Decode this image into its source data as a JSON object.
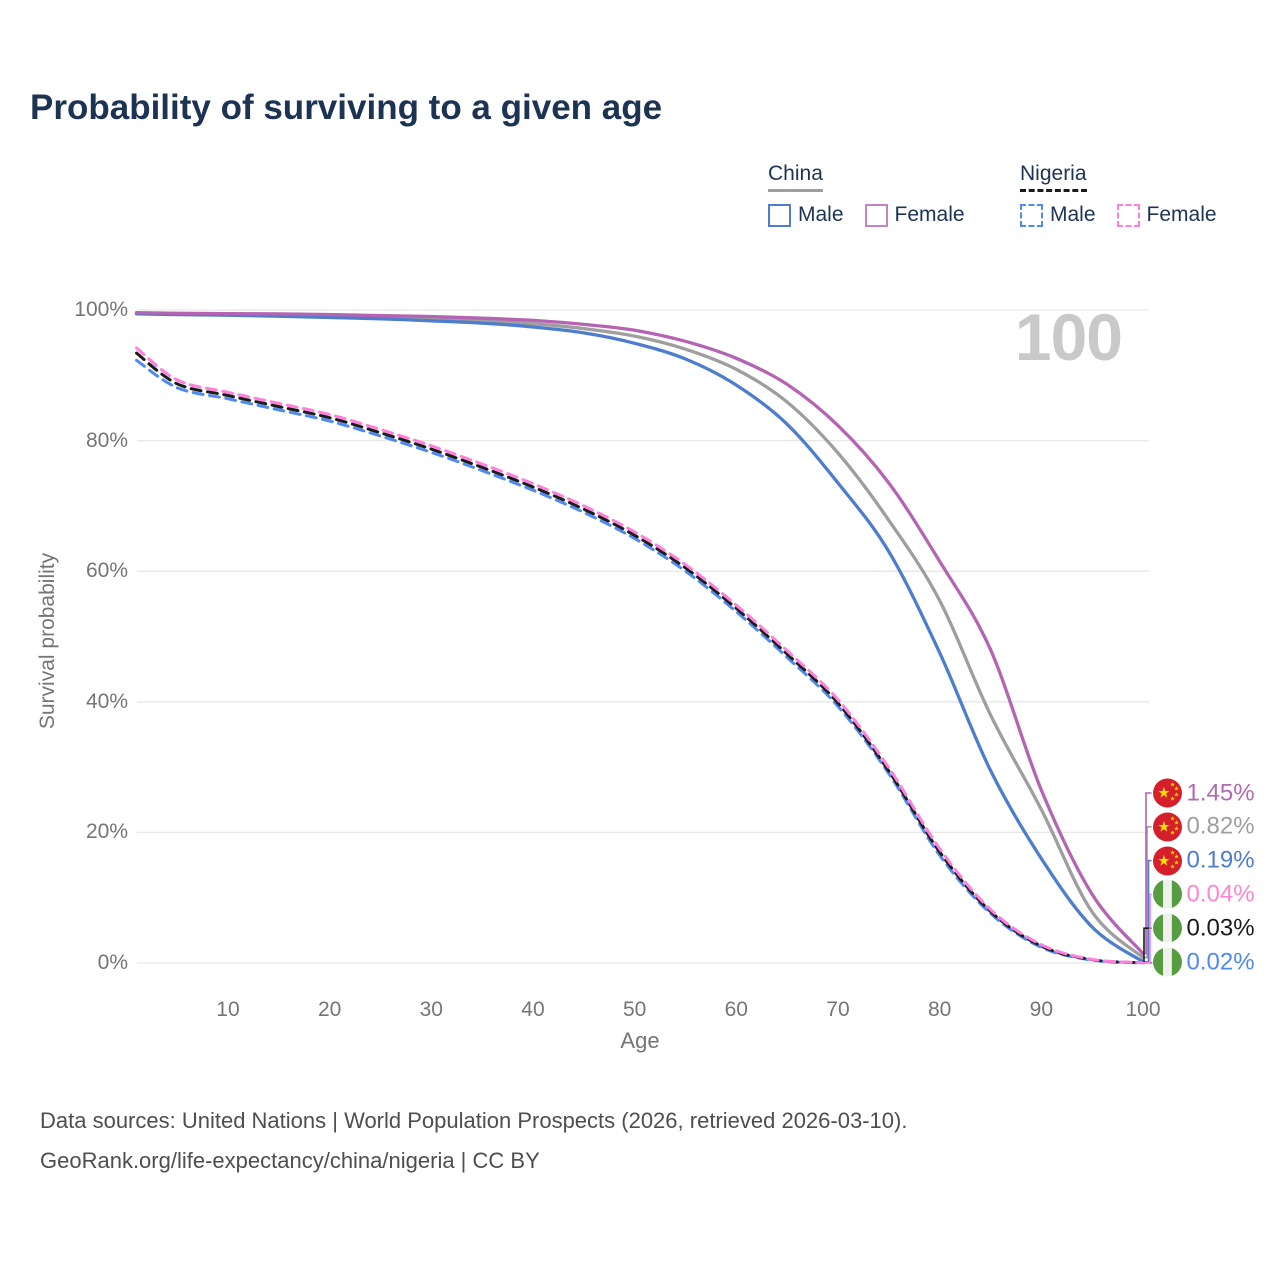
{
  "title": "Probability of surviving to a given age",
  "watermark": "100",
  "legend": {
    "groups": [
      {
        "country": "China",
        "underline_style": "solid",
        "underline_color": "#9e9e9e",
        "items": [
          {
            "label": "Male",
            "color": "#4e7dce",
            "dashed": false
          },
          {
            "label": "Female",
            "color": "#c583c3",
            "dashed": false
          }
        ]
      },
      {
        "country": "Nigeria",
        "underline_style": "dashed",
        "underline_color": "#1a1a1a",
        "items": [
          {
            "label": "Male",
            "color": "#4f8af2",
            "dashed": true
          },
          {
            "label": "Female",
            "color": "#ff7fdb",
            "dashed": true
          }
        ]
      }
    ]
  },
  "chart_data": {
    "type": "line",
    "title": "Probability of surviving to a given age",
    "xlabel": "Age",
    "ylabel": "Survival probability",
    "xlim": [
      1,
      100
    ],
    "ylim": [
      0,
      100
    ],
    "grid": "horizontal-only",
    "legend_position": "top-right",
    "x_ticks": [
      10,
      20,
      30,
      40,
      50,
      60,
      70,
      80,
      90,
      100
    ],
    "y_ticks": [
      {
        "value": 0,
        "label": "0%"
      },
      {
        "value": 20,
        "label": "20%"
      },
      {
        "value": 40,
        "label": "40%"
      },
      {
        "value": 60,
        "label": "60%"
      },
      {
        "value": 80,
        "label": "80%"
      },
      {
        "value": 100,
        "label": "100%"
      }
    ],
    "ages": [
      1,
      5,
      10,
      15,
      20,
      25,
      30,
      35,
      40,
      45,
      50,
      55,
      60,
      65,
      70,
      75,
      80,
      85,
      90,
      95,
      100
    ],
    "unit": "%",
    "series": [
      {
        "name": "China (both sexes)",
        "country": "China",
        "sex": "Both",
        "color": "#9e9e9e",
        "dash": "solid",
        "label_row": 1,
        "end_label": "0.82%",
        "end_label_color": "#9e9e9e",
        "flag": "china",
        "values": [
          99.5,
          99.4,
          99.3,
          99.2,
          99.1,
          98.9,
          98.65,
          98.35,
          97.9,
          97.15,
          96.0,
          94.0,
          90.9,
          85.9,
          78.1,
          67.8,
          55.5,
          38.0,
          23.5,
          7.8,
          0.82
        ]
      },
      {
        "name": "China Male",
        "country": "China",
        "sex": "Male",
        "color": "#4e7dce",
        "dash": "solid",
        "label_row": 2,
        "end_label": "0.19%",
        "end_label_color": "#4e7dce",
        "flag": "china",
        "values": [
          99.4,
          99.3,
          99.2,
          99.05,
          98.85,
          98.65,
          98.35,
          98.0,
          97.4,
          96.5,
          94.9,
          92.5,
          88.5,
          82.5,
          73.5,
          63.0,
          47.5,
          29.5,
          16.0,
          5.5,
          0.19
        ]
      },
      {
        "name": "China Female",
        "country": "China",
        "sex": "Female",
        "color": "#b464b2",
        "dash": "solid",
        "label_row": 0,
        "end_label": "1.45%",
        "end_label_color": "#b06ab0",
        "flag": "china",
        "values": [
          99.6,
          99.5,
          99.45,
          99.4,
          99.3,
          99.15,
          99.0,
          98.75,
          98.4,
          97.8,
          96.9,
          95.2,
          92.6,
          88.6,
          82.3,
          73.5,
          61.5,
          48.0,
          26.5,
          10.5,
          1.45
        ]
      },
      {
        "name": "Nigeria Male",
        "country": "Nigeria",
        "sex": "Male",
        "color": "#4f8af2",
        "dash": "dashed",
        "label_row": 5,
        "end_label": "0.02%",
        "end_label_color": "#4f8af2",
        "flag": "nigeria",
        "values": [
          92.3,
          88.1,
          86.4,
          84.7,
          83.0,
          80.7,
          78.2,
          75.4,
          72.4,
          69.0,
          65.0,
          60.0,
          53.8,
          46.8,
          39.3,
          29.0,
          16.5,
          7.6,
          2.4,
          0.45,
          0.02
        ]
      },
      {
        "name": "Nigeria (both sexes)",
        "country": "Nigeria",
        "sex": "Both",
        "color": "#1c1c1c",
        "dash": "dashed",
        "label_row": 4,
        "end_label": "0.03%",
        "end_label_color": "#1a1a1a",
        "flag": "nigeria",
        "values": [
          93.4,
          88.7,
          86.9,
          85.2,
          83.5,
          81.2,
          78.7,
          75.9,
          72.9,
          69.5,
          65.5,
          60.5,
          54.3,
          47.3,
          39.8,
          29.4,
          17.0,
          7.9,
          2.6,
          0.5,
          0.03
        ]
      },
      {
        "name": "Nigeria Female",
        "country": "Nigeria",
        "sex": "Female",
        "color": "#ff7fdb",
        "dash": "dashed",
        "label_row": 3,
        "end_label": "0.04%",
        "end_label_color": "#ff85d2",
        "flag": "nigeria",
        "values": [
          94.2,
          89.3,
          87.4,
          85.7,
          84.0,
          81.7,
          79.2,
          76.4,
          73.4,
          70.0,
          66.0,
          61.0,
          54.8,
          47.8,
          40.3,
          29.9,
          17.5,
          8.2,
          2.8,
          0.55,
          0.04
        ]
      }
    ]
  },
  "footer": {
    "line1": "Data sources: United Nations | World Population Prospects (2026, retrieved 2026-03-10).",
    "line2": "GeoRank.org/life-expectancy/china/nigeria | CC BY"
  }
}
